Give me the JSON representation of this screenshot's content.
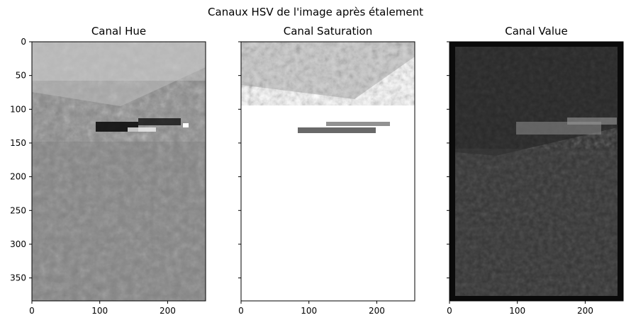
{
  "figure": {
    "suptitle": "Canaux HSV de l'image après étalement"
  },
  "chart_data": [
    {
      "type": "heatmap",
      "title": "Canal Hue",
      "colormap": "gray",
      "xlim": [
        0,
        256
      ],
      "ylim": [
        384,
        0
      ],
      "x_ticks": [
        0,
        100,
        200
      ],
      "y_ticks": [
        0,
        50,
        100,
        150,
        200,
        250,
        300,
        350
      ],
      "y_tick_labels_shown": true,
      "content": "grayscale hue channel of a mountain meadow photo"
    },
    {
      "type": "heatmap",
      "title": "Canal Saturation",
      "colormap": "gray",
      "xlim": [
        0,
        256
      ],
      "ylim": [
        384,
        0
      ],
      "x_ticks": [
        0,
        100,
        200
      ],
      "y_ticks": [
        0,
        50,
        100,
        150,
        200,
        250,
        300,
        350
      ],
      "y_tick_labels_shown": false,
      "content": "grayscale saturation channel, mostly white"
    },
    {
      "type": "heatmap",
      "title": "Canal Value",
      "colormap": "gray",
      "xlim": [
        0,
        256
      ],
      "ylim": [
        384,
        0
      ],
      "x_ticks": [
        0,
        100,
        200
      ],
      "y_ticks": [
        0,
        50,
        100,
        150,
        200,
        250,
        300,
        350
      ],
      "y_tick_labels_shown": false,
      "content": "grayscale value channel, dark forest and village above flower meadow"
    }
  ]
}
